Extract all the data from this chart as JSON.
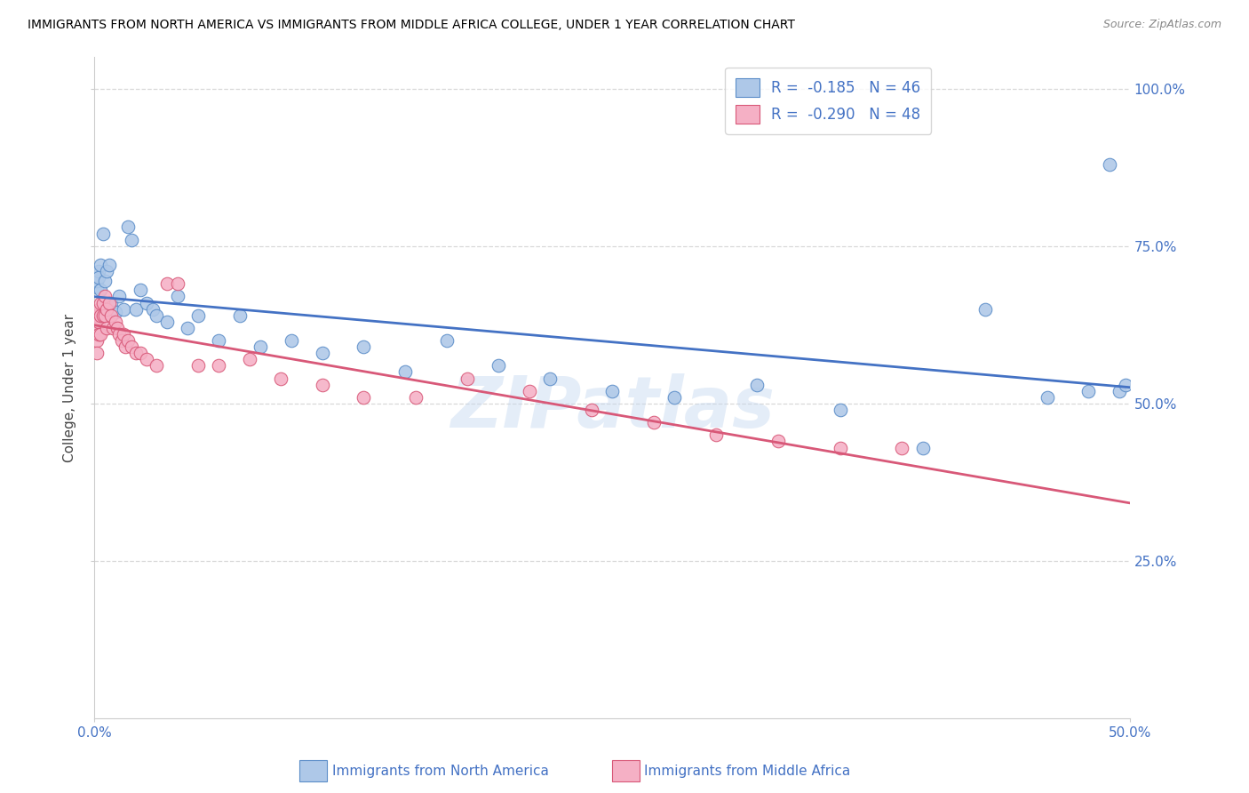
{
  "title": "IMMIGRANTS FROM NORTH AMERICA VS IMMIGRANTS FROM MIDDLE AFRICA COLLEGE, UNDER 1 YEAR CORRELATION CHART",
  "source": "Source: ZipAtlas.com",
  "ylabel": "College, Under 1 year",
  "legend_label1": "Immigrants from North America",
  "legend_label2": "Immigrants from Middle Africa",
  "R1": -0.185,
  "N1": 46,
  "R2": -0.29,
  "N2": 48,
  "color1_fill": "#aec8e8",
  "color1_edge": "#5b8dc8",
  "color2_fill": "#f5b0c5",
  "color2_edge": "#d85878",
  "line1_color": "#4472c4",
  "line2_color": "#d85878",
  "xlim": [
    0.0,
    0.5
  ],
  "ylim": [
    0.0,
    1.05
  ],
  "xtick_vals": [
    0.0,
    0.5
  ],
  "xtick_labels": [
    "0.0%",
    "50.0%"
  ],
  "ytick_vals": [
    0.25,
    0.5,
    0.75,
    1.0
  ],
  "ytick_labels": [
    "25.0%",
    "50.0%",
    "75.0%",
    "100.0%"
  ],
  "blue_x": [
    0.001,
    0.001,
    0.002,
    0.002,
    0.003,
    0.003,
    0.004,
    0.005,
    0.006,
    0.007,
    0.008,
    0.01,
    0.012,
    0.014,
    0.016,
    0.018,
    0.02,
    0.022,
    0.025,
    0.028,
    0.03,
    0.035,
    0.04,
    0.045,
    0.05,
    0.06,
    0.07,
    0.08,
    0.095,
    0.11,
    0.13,
    0.15,
    0.17,
    0.195,
    0.22,
    0.25,
    0.28,
    0.32,
    0.36,
    0.4,
    0.43,
    0.46,
    0.48,
    0.49,
    0.495,
    0.498
  ],
  "blue_y": [
    0.685,
    0.695,
    0.71,
    0.7,
    0.72,
    0.68,
    0.77,
    0.695,
    0.71,
    0.72,
    0.66,
    0.645,
    0.67,
    0.65,
    0.78,
    0.76,
    0.65,
    0.68,
    0.66,
    0.65,
    0.64,
    0.63,
    0.67,
    0.62,
    0.64,
    0.6,
    0.64,
    0.59,
    0.6,
    0.58,
    0.59,
    0.55,
    0.6,
    0.56,
    0.54,
    0.52,
    0.51,
    0.53,
    0.49,
    0.43,
    0.65,
    0.51,
    0.52,
    0.88,
    0.52,
    0.53
  ],
  "pink_x": [
    0.001,
    0.001,
    0.001,
    0.001,
    0.002,
    0.002,
    0.002,
    0.003,
    0.003,
    0.003,
    0.004,
    0.004,
    0.005,
    0.005,
    0.006,
    0.006,
    0.007,
    0.008,
    0.009,
    0.01,
    0.011,
    0.012,
    0.013,
    0.014,
    0.015,
    0.016,
    0.018,
    0.02,
    0.022,
    0.025,
    0.03,
    0.035,
    0.04,
    0.05,
    0.06,
    0.075,
    0.09,
    0.11,
    0.13,
    0.155,
    0.18,
    0.21,
    0.24,
    0.27,
    0.3,
    0.33,
    0.36,
    0.39
  ],
  "pink_y": [
    0.64,
    0.62,
    0.6,
    0.58,
    0.65,
    0.63,
    0.61,
    0.66,
    0.64,
    0.61,
    0.66,
    0.64,
    0.67,
    0.64,
    0.65,
    0.62,
    0.66,
    0.64,
    0.62,
    0.63,
    0.62,
    0.61,
    0.6,
    0.61,
    0.59,
    0.6,
    0.59,
    0.58,
    0.58,
    0.57,
    0.56,
    0.69,
    0.69,
    0.56,
    0.56,
    0.57,
    0.54,
    0.53,
    0.51,
    0.51,
    0.54,
    0.52,
    0.49,
    0.47,
    0.45,
    0.44,
    0.43,
    0.43
  ],
  "watermark": "ZIPatlas",
  "bg_color": "#ffffff",
  "grid_color": "#d8d8d8",
  "tick_label_color": "#4472c4",
  "legend_R_color": "#4472c4"
}
